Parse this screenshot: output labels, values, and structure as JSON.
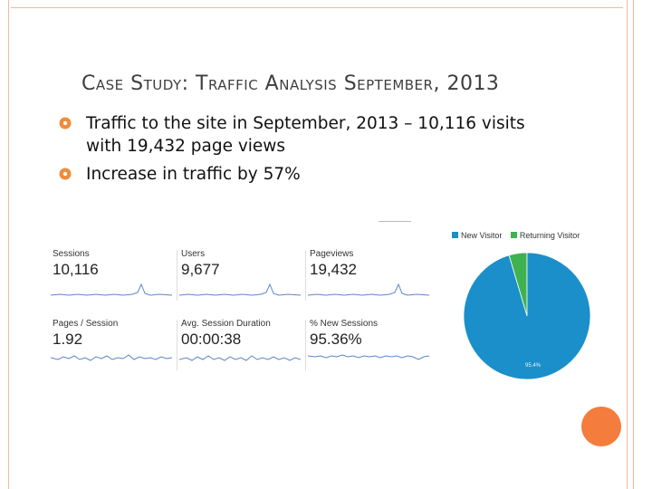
{
  "slide": {
    "title": "Case Study: Traffic Analysis September, 2013",
    "bullets": [
      "Traffic to the site in September, 2013 – 10,116 visits with 19,432 page views",
      "Increase in traffic by 57%"
    ],
    "colors": {
      "accent": "#f47c3c",
      "bullet": "#f08c3c",
      "frame": "#f0b89a",
      "sparkline": "#5b86c8"
    }
  },
  "metrics": [
    {
      "label": "Sessions",
      "value": "10,116"
    },
    {
      "label": "Users",
      "value": "9,677"
    },
    {
      "label": "Pageviews",
      "value": "19,432"
    },
    {
      "label": "Pages / Session",
      "value": "1.92"
    },
    {
      "label": "Avg. Session Duration",
      "value": "00:00:38"
    },
    {
      "label": "% New Sessions",
      "value": "95.36%"
    }
  ],
  "chart_data": {
    "type": "pie",
    "labels": [
      "New Visitor",
      "Returning Visitor"
    ],
    "values": [
      95.4,
      4.6
    ],
    "colors": [
      "#1a8fc9",
      "#3fb24f"
    ],
    "slice_label": "95.4%",
    "legend": "top"
  }
}
